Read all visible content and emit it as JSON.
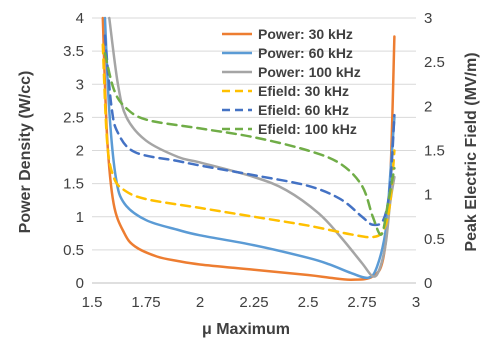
{
  "chart_data": {
    "type": "line",
    "title": "",
    "xlabel": "μ Maximum",
    "ylabel_left": "Power Density (W/cc)",
    "ylabel_right": "Peak Electric Field (MV/m)",
    "xlim": [
      1.5,
      3
    ],
    "ylim_left": [
      0,
      4
    ],
    "ylim_right": [
      0,
      3
    ],
    "x_ticks": [
      "1.5",
      "1.75",
      "2",
      "2.25",
      "2.5",
      "2.75",
      "3"
    ],
    "y_left_ticks": [
      "0",
      "0.5",
      "1",
      "1.5",
      "2",
      "2.5",
      "3",
      "3.5",
      "4"
    ],
    "y_right_ticks": [
      "0",
      "0.5",
      "1",
      "1.5",
      "2",
      "2.5",
      "3"
    ],
    "grid": "horizontal",
    "legend_position": "top-right",
    "colors": {
      "orange": "#ED7D31",
      "blue": "#5B9BD5",
      "gray": "#A5A5A5",
      "yellow": "#FFC000",
      "darkblue": "#4472C4",
      "green": "#70AD47"
    },
    "series": [
      {
        "name": "Power: 30 kHz",
        "axis": "left",
        "style": "solid",
        "color": "#ED7D31",
        "points": [
          [
            1.55,
            4.0
          ],
          [
            1.57,
            2.2
          ],
          [
            1.6,
            1.2
          ],
          [
            1.65,
            0.75
          ],
          [
            1.7,
            0.55
          ],
          [
            1.8,
            0.4
          ],
          [
            1.9,
            0.33
          ],
          [
            2.0,
            0.28
          ],
          [
            2.25,
            0.2
          ],
          [
            2.5,
            0.12
          ],
          [
            2.6,
            0.08
          ],
          [
            2.7,
            0.05
          ],
          [
            2.8,
            0.1
          ],
          [
            2.85,
            0.4
          ],
          [
            2.88,
            1.5
          ],
          [
            2.9,
            3.72
          ]
        ]
      },
      {
        "name": "Power: 60 kHz",
        "axis": "left",
        "style": "solid",
        "color": "#5B9BD5",
        "points": [
          [
            1.56,
            4.0
          ],
          [
            1.58,
            2.6
          ],
          [
            1.61,
            1.6
          ],
          [
            1.65,
            1.2
          ],
          [
            1.75,
            0.95
          ],
          [
            1.9,
            0.8
          ],
          [
            2.0,
            0.72
          ],
          [
            2.25,
            0.57
          ],
          [
            2.5,
            0.38
          ],
          [
            2.6,
            0.28
          ],
          [
            2.7,
            0.15
          ],
          [
            2.78,
            0.08
          ],
          [
            2.82,
            0.25
          ],
          [
            2.86,
            0.8
          ],
          [
            2.88,
            1.6
          ],
          [
            2.9,
            2.5
          ]
        ]
      },
      {
        "name": "Power: 100 kHz",
        "axis": "left",
        "style": "solid",
        "color": "#A5A5A5",
        "points": [
          [
            1.58,
            4.0
          ],
          [
            1.62,
            3.0
          ],
          [
            1.66,
            2.5
          ],
          [
            1.75,
            2.15
          ],
          [
            1.9,
            1.9
          ],
          [
            2.0,
            1.82
          ],
          [
            2.25,
            1.6
          ],
          [
            2.4,
            1.4
          ],
          [
            2.55,
            1.05
          ],
          [
            2.65,
            0.7
          ],
          [
            2.75,
            0.3
          ],
          [
            2.8,
            0.1
          ],
          [
            2.83,
            0.2
          ],
          [
            2.86,
            0.6
          ],
          [
            2.88,
            1.2
          ],
          [
            2.9,
            1.6
          ]
        ]
      },
      {
        "name": "Efield: 30 kHz",
        "axis": "right",
        "style": "dashed",
        "color": "#FFC000",
        "points": [
          [
            1.55,
            2.7
          ],
          [
            1.57,
            1.6
          ],
          [
            1.6,
            1.2
          ],
          [
            1.65,
            1.05
          ],
          [
            1.75,
            0.95
          ],
          [
            2.0,
            0.85
          ],
          [
            2.25,
            0.75
          ],
          [
            2.5,
            0.65
          ],
          [
            2.7,
            0.55
          ],
          [
            2.8,
            0.52
          ],
          [
            2.85,
            0.6
          ],
          [
            2.88,
            0.9
          ],
          [
            2.9,
            1.5
          ]
        ]
      },
      {
        "name": "Efield: 60 kHz",
        "axis": "right",
        "style": "dashed",
        "color": "#4472C4",
        "points": [
          [
            1.56,
            2.8
          ],
          [
            1.59,
            2.0
          ],
          [
            1.62,
            1.7
          ],
          [
            1.7,
            1.48
          ],
          [
            1.9,
            1.38
          ],
          [
            2.0,
            1.33
          ],
          [
            2.25,
            1.22
          ],
          [
            2.5,
            1.1
          ],
          [
            2.65,
            0.95
          ],
          [
            2.75,
            0.75
          ],
          [
            2.8,
            0.66
          ],
          [
            2.85,
            0.72
          ],
          [
            2.88,
            1.1
          ],
          [
            2.9,
            1.9
          ]
        ]
      },
      {
        "name": "Efield: 100 kHz",
        "axis": "right",
        "style": "dashed",
        "color": "#70AD47",
        "points": [
          [
            1.56,
            2.6
          ],
          [
            1.6,
            2.2
          ],
          [
            1.65,
            2.0
          ],
          [
            1.75,
            1.85
          ],
          [
            2.0,
            1.75
          ],
          [
            2.25,
            1.65
          ],
          [
            2.5,
            1.5
          ],
          [
            2.65,
            1.35
          ],
          [
            2.75,
            1.1
          ],
          [
            2.8,
            0.75
          ],
          [
            2.84,
            0.55
          ],
          [
            2.87,
            0.9
          ],
          [
            2.9,
            1.3
          ]
        ]
      }
    ]
  }
}
